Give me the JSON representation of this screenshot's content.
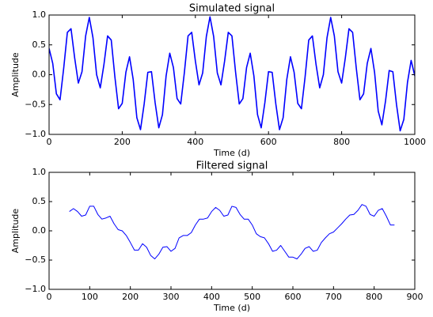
{
  "chart_data": [
    {
      "type": "line",
      "title": "Simulated signal",
      "xlabel": "Time (d)",
      "ylabel": "Amplitude",
      "x": [
        0,
        10,
        20,
        30,
        40,
        50,
        60,
        70,
        80,
        90,
        100,
        110,
        120,
        130,
        140,
        150,
        160,
        170,
        180,
        190,
        200,
        210,
        220,
        230,
        240,
        250,
        260,
        270,
        280,
        290,
        300,
        310,
        320,
        330,
        340,
        350,
        360,
        370,
        380,
        390,
        400,
        410,
        420,
        430,
        440,
        450,
        460,
        470,
        480,
        490,
        500,
        510,
        520,
        530,
        540,
        550,
        560,
        570,
        580,
        590,
        600,
        610,
        620,
        630,
        640,
        650,
        660,
        670,
        680,
        690,
        700,
        710,
        720,
        730,
        740,
        750,
        760,
        770,
        780,
        790,
        800,
        810,
        820,
        830,
        840,
        850,
        860,
        870,
        880,
        890,
        900,
        910,
        920,
        930,
        940,
        950,
        960,
        970,
        980,
        990,
        1000
      ],
      "series": [
        {
          "color": "#0000ff",
          "values": [
            0.44,
            0.19,
            -0.32,
            -0.42,
            0.11,
            0.71,
            0.77,
            0.28,
            -0.14,
            0.05,
            0.65,
            0.96,
            0.62,
            0,
            -0.22,
            0.17,
            0.65,
            0.58,
            -0.04,
            -0.57,
            -0.48,
            0.04,
            0.3,
            -0.08,
            -0.72,
            -0.92,
            -0.49,
            0.04,
            0.05,
            -0.47,
            -0.89,
            -0.67,
            -0.02,
            0.36,
            0.12,
            -0.4,
            -0.49,
            0.04,
            0.65,
            0.71,
            0.23,
            -0.17,
            0.03,
            0.64,
            0.97,
            0.64,
            0.03,
            -0.17,
            0.23,
            0.71,
            0.65,
            0.04,
            -0.49,
            -0.4,
            0.12,
            0.36,
            -0.02,
            -0.67,
            -0.89,
            -0.47,
            0.05,
            0.04,
            -0.49,
            -0.92,
            -0.72,
            -0.08,
            0.3,
            0.04,
            -0.48,
            -0.57,
            -0.04,
            0.58,
            0.65,
            0.17,
            -0.22,
            0,
            0.62,
            0.96,
            0.65,
            0.05,
            -0.14,
            0.28,
            0.77,
            0.71,
            0.11,
            -0.42,
            -0.32,
            0.19,
            0.44,
            0.04,
            -0.61,
            -0.84,
            -0.44,
            0.07,
            0.05,
            -0.5,
            -0.94,
            -0.75,
            -0.13,
            0.24,
            -0.02
          ]
        }
      ],
      "xlim": [
        0,
        1000
      ],
      "xticks": [
        0,
        200,
        400,
        600,
        800,
        1000
      ],
      "ylim": [
        -1,
        1
      ],
      "yticks": [
        {
          "value": -1,
          "label": "−1.0"
        },
        {
          "value": -0.5,
          "label": "−0.5"
        },
        {
          "value": 0,
          "label": "0.0"
        },
        {
          "value": 0.5,
          "label": "0.5"
        },
        {
          "value": 1,
          "label": "1.0"
        }
      ]
    },
    {
      "type": "line",
      "title": "Filtered signal",
      "xlabel": "Time (d)",
      "ylabel": "Amplitude",
      "x": [
        50,
        60,
        70,
        80,
        90,
        100,
        110,
        120,
        130,
        140,
        150,
        160,
        170,
        180,
        190,
        200,
        210,
        220,
        230,
        240,
        250,
        260,
        270,
        280,
        290,
        300,
        310,
        320,
        330,
        340,
        350,
        360,
        370,
        380,
        390,
        400,
        410,
        420,
        430,
        440,
        450,
        460,
        470,
        480,
        490,
        500,
        510,
        520,
        530,
        540,
        550,
        560,
        570,
        580,
        590,
        600,
        610,
        620,
        630,
        640,
        650,
        660,
        670,
        680,
        690,
        700,
        710,
        720,
        730,
        740,
        750,
        760,
        770,
        780,
        790,
        800,
        810,
        820,
        830,
        840,
        850
      ],
      "series": [
        {
          "color": "#0000ff",
          "values": [
            0.33,
            0.38,
            0.33,
            0.25,
            0.27,
            0.42,
            0.42,
            0.28,
            0.2,
            0.22,
            0.25,
            0.12,
            0.02,
            0,
            -0.08,
            -0.2,
            -0.33,
            -0.33,
            -0.22,
            -0.28,
            -0.42,
            -0.48,
            -0.4,
            -0.28,
            -0.27,
            -0.35,
            -0.3,
            -0.12,
            -0.08,
            -0.08,
            -0.03,
            0.1,
            0.2,
            0.2,
            0.22,
            0.33,
            0.4,
            0.35,
            0.25,
            0.27,
            0.42,
            0.4,
            0.28,
            0.2,
            0.2,
            0.1,
            -0.05,
            -0.1,
            -0.12,
            -0.22,
            -0.35,
            -0.33,
            -0.25,
            -0.35,
            -0.45,
            -0.45,
            -0.48,
            -0.4,
            -0.3,
            -0.27,
            -0.35,
            -0.33,
            -0.2,
            -0.12,
            -0.05,
            -0.02,
            0.05,
            0.12,
            0.2,
            0.27,
            0.28,
            0.35,
            0.45,
            0.42,
            0.28,
            0.25,
            0.35,
            0.38,
            0.25,
            0.1,
            0.1
          ]
        }
      ],
      "xlim": [
        0,
        900
      ],
      "xticks": [
        0,
        100,
        200,
        300,
        400,
        500,
        600,
        700,
        800,
        900
      ],
      "ylim": [
        -1,
        1
      ],
      "yticks": [
        {
          "value": -1,
          "label": "−1.0"
        },
        {
          "value": -0.5,
          "label": "−0.5"
        },
        {
          "value": 0,
          "label": "0.0"
        },
        {
          "value": 0.5,
          "label": "0.5"
        },
        {
          "value": 1,
          "label": "1.0"
        }
      ]
    }
  ]
}
